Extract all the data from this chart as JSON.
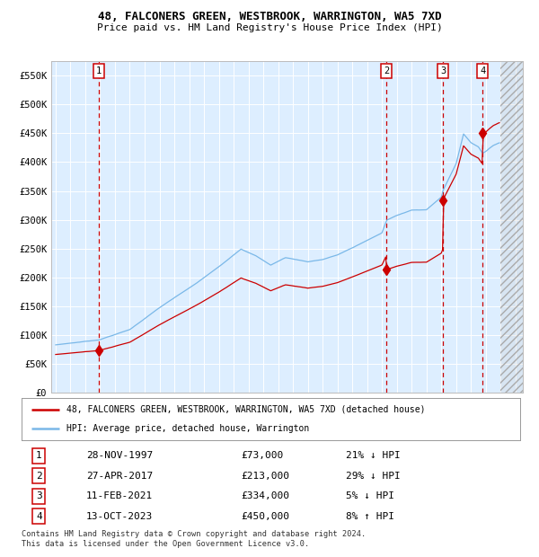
{
  "title1": "48, FALCONERS GREEN, WESTBROOK, WARRINGTON, WA5 7XD",
  "title2": "Price paid vs. HM Land Registry's House Price Index (HPI)",
  "ylim": [
    0,
    575000
  ],
  "yticks": [
    0,
    50000,
    100000,
    150000,
    200000,
    250000,
    300000,
    350000,
    400000,
    450000,
    500000,
    550000
  ],
  "ytick_labels": [
    "£0",
    "£50K",
    "£100K",
    "£150K",
    "£200K",
    "£250K",
    "£300K",
    "£350K",
    "£400K",
    "£450K",
    "£500K",
    "£550K"
  ],
  "xlim_start": 1994.7,
  "xlim_end": 2026.5,
  "plot_bg_color": "#ddeeff",
  "grid_color": "#ffffff",
  "hpi_line_color": "#7ab8e8",
  "price_line_color": "#cc0000",
  "vline_color": "#cc0000",
  "sale_points": [
    {
      "date_year": 1997.91,
      "price": 73000,
      "label": "1"
    },
    {
      "date_year": 2017.32,
      "price": 213000,
      "label": "2"
    },
    {
      "date_year": 2021.12,
      "price": 334000,
      "label": "3"
    },
    {
      "date_year": 2023.79,
      "price": 450000,
      "label": "4"
    }
  ],
  "legend_line1": "48, FALCONERS GREEN, WESTBROOK, WARRINGTON, WA5 7XD (detached house)",
  "legend_line2": "HPI: Average price, detached house, Warrington",
  "table_rows": [
    {
      "num": "1",
      "date": "28-NOV-1997",
      "price": "£73,000",
      "hpi": "21% ↓ HPI"
    },
    {
      "num": "2",
      "date": "27-APR-2017",
      "price": "£213,000",
      "hpi": "29% ↓ HPI"
    },
    {
      "num": "3",
      "date": "11-FEB-2021",
      "price": "£334,000",
      "hpi": "5% ↓ HPI"
    },
    {
      "num": "4",
      "date": "13-OCT-2023",
      "price": "£450,000",
      "hpi": "8% ↑ HPI"
    }
  ],
  "footnote": "Contains HM Land Registry data © Crown copyright and database right 2024.\nThis data is licensed under the Open Government Licence v3.0.",
  "future_start_year": 2025.0,
  "hpi_anchors": [
    [
      1995.0,
      83000
    ],
    [
      1997.91,
      92000
    ],
    [
      2000.0,
      110000
    ],
    [
      2002.0,
      148000
    ],
    [
      2004.5,
      190000
    ],
    [
      2006.0,
      218000
    ],
    [
      2007.5,
      250000
    ],
    [
      2008.5,
      238000
    ],
    [
      2009.5,
      222000
    ],
    [
      2010.5,
      235000
    ],
    [
      2012.0,
      228000
    ],
    [
      2013.0,
      232000
    ],
    [
      2014.0,
      240000
    ],
    [
      2015.0,
      252000
    ],
    [
      2016.0,
      265000
    ],
    [
      2017.0,
      278000
    ],
    [
      2017.32,
      300000
    ],
    [
      2018.0,
      308000
    ],
    [
      2019.0,
      318000
    ],
    [
      2020.0,
      318000
    ],
    [
      2021.0,
      340000
    ],
    [
      2021.12,
      352000
    ],
    [
      2022.0,
      398000
    ],
    [
      2022.5,
      450000
    ],
    [
      2023.0,
      435000
    ],
    [
      2023.5,
      428000
    ],
    [
      2023.79,
      417000
    ],
    [
      2024.0,
      420000
    ],
    [
      2024.5,
      430000
    ],
    [
      2024.9,
      435000
    ]
  ]
}
